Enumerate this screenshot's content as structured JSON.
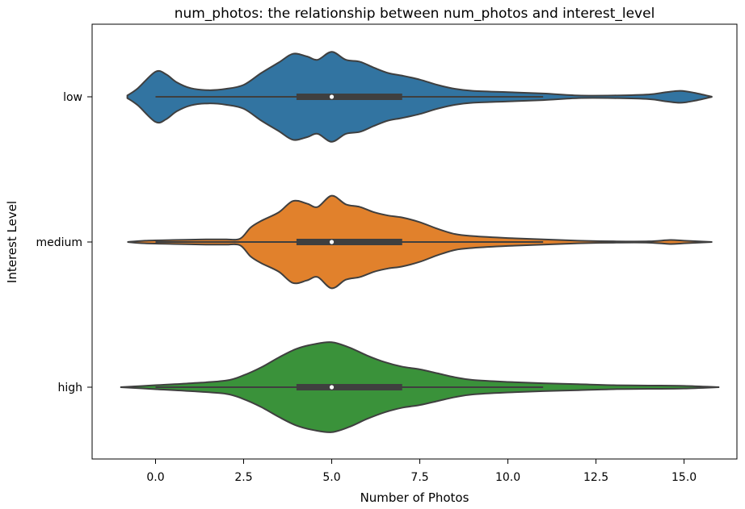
{
  "chart_data": {
    "type": "violin",
    "orientation": "horizontal",
    "title": "num_photos: the relationship between num_photos and interest_level",
    "xlabel": "Number of Photos",
    "ylabel": "Interest Level",
    "xlim": [
      -1.8,
      16.5
    ],
    "xticks": [
      0.0,
      2.5,
      5.0,
      7.5,
      10.0,
      12.5,
      15.0
    ],
    "xtick_labels": [
      "0.0",
      "2.5",
      "5.0",
      "7.5",
      "10.0",
      "12.5",
      "15.0"
    ],
    "categories": [
      "low",
      "medium",
      "high"
    ],
    "series": [
      {
        "name": "low",
        "color": "#3274a1",
        "box": {
          "whisker_low": 0,
          "q1": 4,
          "median": 5,
          "q3": 7,
          "whisker_high": 11
        },
        "density": [
          [
            -0.8,
            0.02
          ],
          [
            -0.5,
            0.13
          ],
          [
            0.0,
            0.38
          ],
          [
            0.3,
            0.34
          ],
          [
            0.6,
            0.22
          ],
          [
            1.0,
            0.13
          ],
          [
            1.5,
            0.1
          ],
          [
            2.0,
            0.12
          ],
          [
            2.5,
            0.18
          ],
          [
            3.0,
            0.36
          ],
          [
            3.5,
            0.52
          ],
          [
            3.9,
            0.65
          ],
          [
            4.3,
            0.61
          ],
          [
            4.6,
            0.56
          ],
          [
            5.0,
            0.68
          ],
          [
            5.4,
            0.56
          ],
          [
            5.8,
            0.53
          ],
          [
            6.2,
            0.44
          ],
          [
            6.6,
            0.36
          ],
          [
            7.0,
            0.32
          ],
          [
            7.5,
            0.26
          ],
          [
            8.0,
            0.18
          ],
          [
            8.5,
            0.12
          ],
          [
            9.0,
            0.09
          ],
          [
            10.0,
            0.07
          ],
          [
            11.0,
            0.05
          ],
          [
            12.0,
            0.02
          ],
          [
            13.0,
            0.02
          ],
          [
            14.0,
            0.035
          ],
          [
            14.5,
            0.07
          ],
          [
            14.9,
            0.09
          ],
          [
            15.3,
            0.06
          ],
          [
            15.8,
            0.0
          ]
        ]
      },
      {
        "name": "medium",
        "color": "#e1812c",
        "box": {
          "whisker_low": 0,
          "q1": 4,
          "median": 5,
          "q3": 7,
          "whisker_high": 11
        },
        "density": [
          [
            -0.8,
            0.0
          ],
          [
            -0.3,
            0.02
          ],
          [
            0.5,
            0.03
          ],
          [
            1.0,
            0.035
          ],
          [
            1.5,
            0.04
          ],
          [
            2.0,
            0.04
          ],
          [
            2.4,
            0.05
          ],
          [
            2.7,
            0.22
          ],
          [
            3.0,
            0.32
          ],
          [
            3.5,
            0.45
          ],
          [
            3.9,
            0.62
          ],
          [
            4.3,
            0.58
          ],
          [
            4.6,
            0.53
          ],
          [
            5.0,
            0.7
          ],
          [
            5.4,
            0.57
          ],
          [
            5.8,
            0.53
          ],
          [
            6.2,
            0.45
          ],
          [
            6.6,
            0.4
          ],
          [
            7.0,
            0.37
          ],
          [
            7.5,
            0.3
          ],
          [
            8.0,
            0.2
          ],
          [
            8.5,
            0.12
          ],
          [
            9.0,
            0.09
          ],
          [
            10.0,
            0.06
          ],
          [
            11.0,
            0.04
          ],
          [
            12.0,
            0.02
          ],
          [
            13.0,
            0.01
          ],
          [
            14.0,
            0.01
          ],
          [
            14.6,
            0.03
          ],
          [
            15.0,
            0.02
          ],
          [
            15.8,
            0.0
          ]
        ]
      },
      {
        "name": "high",
        "color": "#3a923a",
        "box": {
          "whisker_low": 0,
          "q1": 4,
          "median": 5,
          "q3": 7,
          "whisker_high": 11
        },
        "density": [
          [
            -1.0,
            0.0
          ],
          [
            0.0,
            0.03
          ],
          [
            1.0,
            0.06
          ],
          [
            2.0,
            0.1
          ],
          [
            2.5,
            0.18
          ],
          [
            3.0,
            0.3
          ],
          [
            3.5,
            0.45
          ],
          [
            4.0,
            0.58
          ],
          [
            4.5,
            0.65
          ],
          [
            5.0,
            0.68
          ],
          [
            5.5,
            0.6
          ],
          [
            6.0,
            0.48
          ],
          [
            6.5,
            0.38
          ],
          [
            7.0,
            0.31
          ],
          [
            7.5,
            0.27
          ],
          [
            8.0,
            0.21
          ],
          [
            8.5,
            0.15
          ],
          [
            9.0,
            0.11
          ],
          [
            10.0,
            0.08
          ],
          [
            11.0,
            0.06
          ],
          [
            12.0,
            0.045
          ],
          [
            13.0,
            0.03
          ],
          [
            14.0,
            0.025
          ],
          [
            15.0,
            0.02
          ],
          [
            16.0,
            0.0
          ]
        ]
      }
    ]
  }
}
